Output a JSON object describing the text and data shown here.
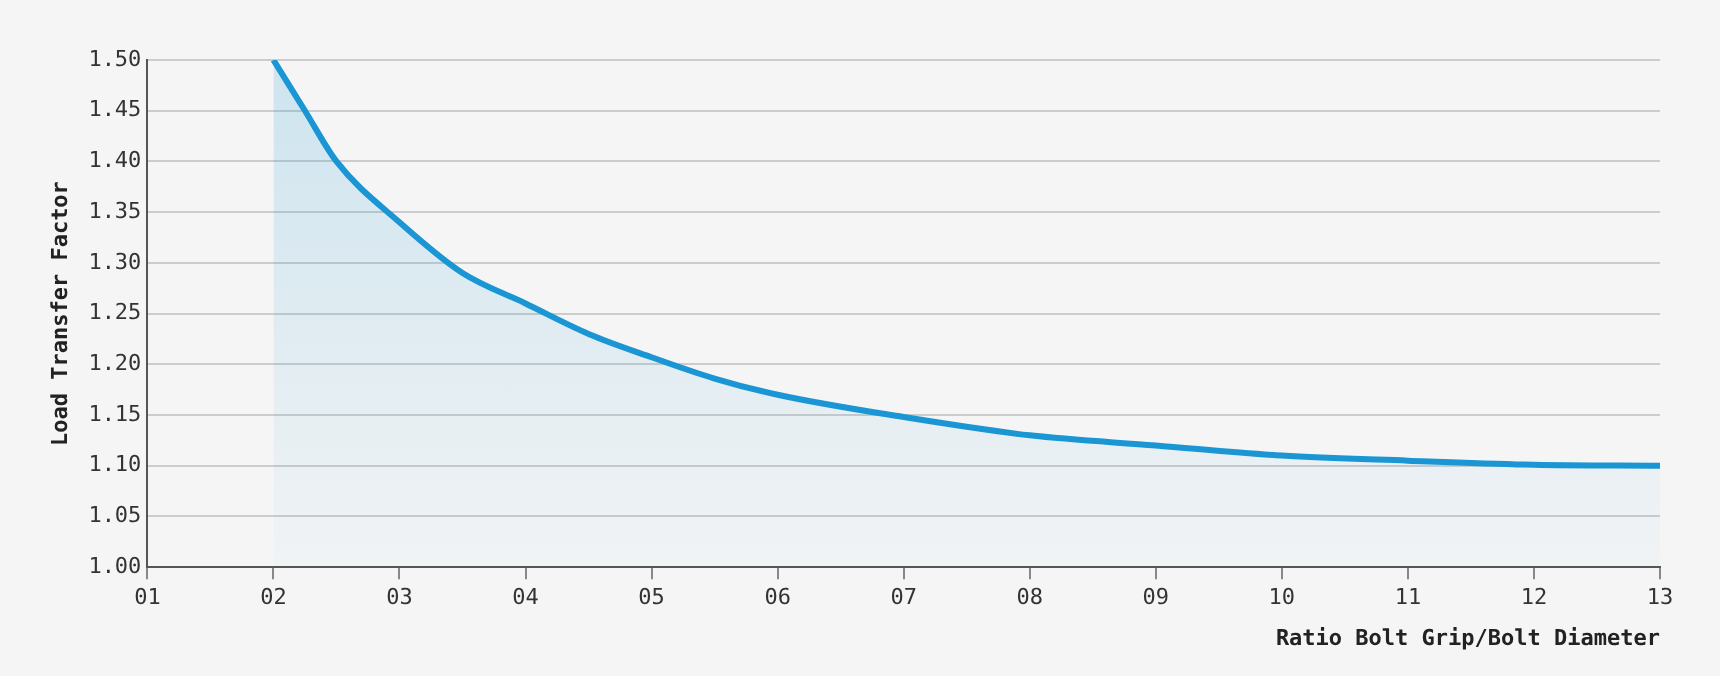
{
  "chart_data": {
    "type": "area",
    "xlabel": "Ratio Bolt Grip/Bolt Diameter",
    "ylabel": "Load Transfer Factor",
    "series": [
      {
        "color": "#1a96d4",
        "x": [
          2,
          2.25,
          2.5,
          3,
          3.5,
          4,
          4.5,
          5,
          5.5,
          6,
          7,
          8,
          9,
          10,
          11,
          12,
          13
        ],
        "values": [
          1.5,
          1.45,
          1.4,
          1.34,
          1.29,
          1.26,
          1.23,
          1.207,
          1.186,
          1.17,
          1.148,
          1.13,
          1.12,
          1.11,
          1.105,
          1.101,
          1.1
        ]
      }
    ],
    "xlim": [
      1,
      13
    ],
    "xticks": [
      {
        "value": 1,
        "label": "01"
      },
      {
        "value": 2,
        "label": "02"
      },
      {
        "value": 3,
        "label": "03"
      },
      {
        "value": 4,
        "label": "04"
      },
      {
        "value": 5,
        "label": "05"
      },
      {
        "value": 6,
        "label": "06"
      },
      {
        "value": 7,
        "label": "07"
      },
      {
        "value": 8,
        "label": "08"
      },
      {
        "value": 9,
        "label": "09"
      },
      {
        "value": 10,
        "label": "10"
      },
      {
        "value": 11,
        "label": "11"
      },
      {
        "value": 12,
        "label": "12"
      },
      {
        "value": 13,
        "label": "13"
      }
    ],
    "ylim": [
      1,
      1.5
    ],
    "yticks": [
      {
        "value": 1,
        "label": "1.00"
      },
      {
        "value": 1.05,
        "label": "1.05"
      },
      {
        "value": 1.1,
        "label": "1.10"
      },
      {
        "value": 1.15,
        "label": "1.15"
      },
      {
        "value": 1.2,
        "label": "1.20"
      },
      {
        "value": 1.25,
        "label": "1.25"
      },
      {
        "value": 1.3,
        "label": "1.30"
      },
      {
        "value": 1.35,
        "label": "1.35"
      },
      {
        "value": 1.4,
        "label": "1.40"
      },
      {
        "value": 1.45,
        "label": "1.45"
      },
      {
        "value": 1.5,
        "label": "1.50"
      }
    ],
    "grid": "y",
    "legend": false,
    "marker": "none",
    "line_style": "solid"
  }
}
